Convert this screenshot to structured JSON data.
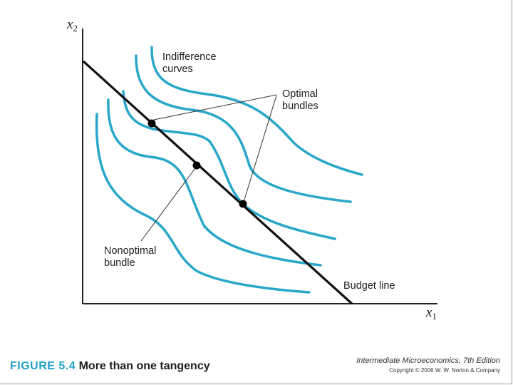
{
  "diagram": {
    "axis_x_label": "x",
    "axis_x_sub": "1",
    "axis_y_label": "x",
    "axis_y_sub": "2",
    "labels": {
      "indifference_line1": "Indifference",
      "indifference_line2": "curves",
      "optimal_line1": "Optimal",
      "optimal_line2": "bundles",
      "nonoptimal_line1": "Nonoptimal",
      "nonoptimal_line2": "bundle",
      "budget": "Budget line"
    },
    "colors": {
      "curve": "#29a7c9",
      "budget": "#111111",
      "axes": "#222222"
    }
  },
  "caption": {
    "figure_number": "FIGURE 5.4",
    "title": "More than one tangency"
  },
  "book": {
    "title": "Intermediate Microeconomics, 7th Edition",
    "copyright": "Copyright © 2006 W. W. Norton & Company"
  }
}
